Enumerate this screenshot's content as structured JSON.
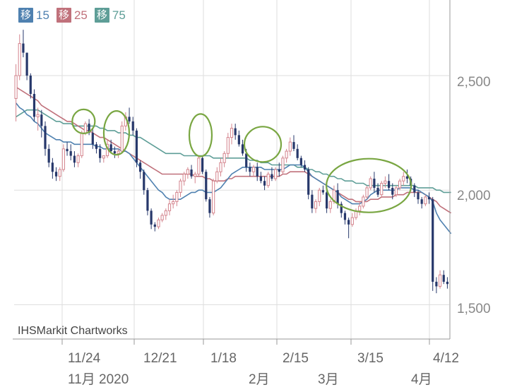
{
  "legend": [
    {
      "tag": "移",
      "value": "15",
      "color": "#4f81b0"
    },
    {
      "tag": "移",
      "value": "25",
      "color": "#c0717b"
    },
    {
      "tag": "移",
      "value": "75",
      "color": "#5e9e97"
    }
  ],
  "watermark": "IHSMarkit Chartworks",
  "chart_data": {
    "type": "candlestick",
    "y_axis": {
      "ticks": [
        "2,500",
        "2,000",
        "1,500"
      ],
      "tick_values": [
        2500,
        2000,
        1500
      ],
      "ylim": [
        1350,
        2830
      ],
      "side": "right"
    },
    "x_axis": {
      "date_ticks": [
        "11/24",
        "12/21",
        "1/18",
        "2/15",
        "3/15",
        "4/12"
      ],
      "period_labels": [
        "11月 2020",
        "2月",
        "3月",
        "4月"
      ]
    },
    "colors": {
      "up": "#d4848d",
      "down": "#27386b",
      "grid": "#dddddd",
      "highlight": "#79a642"
    },
    "candles": [
      [
        2400,
        2550,
        2300,
        2500
      ],
      [
        2500,
        2680,
        2480,
        2640
      ],
      [
        2640,
        2700,
        2580,
        2600
      ],
      [
        2600,
        2600,
        2480,
        2500
      ],
      [
        2500,
        2510,
        2400,
        2420
      ],
      [
        2420,
        2440,
        2300,
        2320
      ],
      [
        2320,
        2360,
        2260,
        2330
      ],
      [
        2330,
        2350,
        2230,
        2280
      ],
      [
        2280,
        2300,
        2150,
        2180
      ],
      [
        2180,
        2200,
        2100,
        2120
      ],
      [
        2120,
        2140,
        2050,
        2080
      ],
      [
        2080,
        2100,
        2040,
        2060
      ],
      [
        2060,
        2100,
        2040,
        2090
      ],
      [
        2090,
        2200,
        2080,
        2180
      ],
      [
        2180,
        2210,
        2150,
        2170
      ],
      [
        2170,
        2200,
        2130,
        2150
      ],
      [
        2150,
        2170,
        2100,
        2120
      ],
      [
        2120,
        2160,
        2100,
        2150
      ],
      [
        2150,
        2260,
        2140,
        2250
      ],
      [
        2250,
        2300,
        2240,
        2290
      ],
      [
        2290,
        2310,
        2240,
        2250
      ],
      [
        2250,
        2270,
        2180,
        2200
      ],
      [
        2200,
        2210,
        2160,
        2180
      ],
      [
        2180,
        2200,
        2120,
        2140
      ],
      [
        2140,
        2150,
        2120,
        2150
      ],
      [
        2150,
        2220,
        2140,
        2200
      ],
      [
        2200,
        2220,
        2160,
        2170
      ],
      [
        2170,
        2190,
        2140,
        2160
      ],
      [
        2160,
        2180,
        2140,
        2170
      ],
      [
        2170,
        2300,
        2160,
        2280
      ],
      [
        2280,
        2340,
        2260,
        2320
      ],
      [
        2320,
        2360,
        2290,
        2300
      ],
      [
        2300,
        2320,
        2240,
        2260
      ],
      [
        2260,
        2270,
        2100,
        2120
      ],
      [
        2120,
        2130,
        2050,
        2080
      ],
      [
        2080,
        2090,
        1980,
        2000
      ],
      [
        2000,
        2010,
        1890,
        1910
      ],
      [
        1910,
        1920,
        1830,
        1850
      ],
      [
        1850,
        1860,
        1820,
        1840
      ],
      [
        1840,
        1880,
        1830,
        1870
      ],
      [
        1870,
        1900,
        1860,
        1890
      ],
      [
        1890,
        1920,
        1870,
        1910
      ],
      [
        1910,
        1960,
        1890,
        1940
      ],
      [
        1940,
        1980,
        1920,
        1950
      ],
      [
        1950,
        2000,
        1930,
        1990
      ],
      [
        1990,
        2050,
        1970,
        2040
      ],
      [
        2040,
        2080,
        2020,
        2070
      ],
      [
        2070,
        2100,
        2050,
        2090
      ],
      [
        2090,
        2110,
        2050,
        2060
      ],
      [
        2060,
        2080,
        2030,
        2070
      ],
      [
        2070,
        2150,
        2060,
        2140
      ],
      [
        2140,
        2150,
        2070,
        2080
      ],
      [
        2080,
        2090,
        1950,
        1960
      ],
      [
        1960,
        1970,
        1880,
        1900
      ],
      [
        1900,
        2050,
        1890,
        2040
      ],
      [
        2040,
        2100,
        2030,
        2080
      ],
      [
        2080,
        2140,
        2060,
        2120
      ],
      [
        2120,
        2170,
        2100,
        2160
      ],
      [
        2160,
        2250,
        2140,
        2230
      ],
      [
        2230,
        2290,
        2200,
        2270
      ],
      [
        2270,
        2290,
        2220,
        2240
      ],
      [
        2240,
        2260,
        2190,
        2200
      ],
      [
        2200,
        2220,
        2150,
        2160
      ],
      [
        2160,
        2180,
        2080,
        2100
      ],
      [
        2100,
        2120,
        2060,
        2080
      ],
      [
        2080,
        2110,
        2060,
        2100
      ],
      [
        2100,
        2120,
        2040,
        2060
      ],
      [
        2060,
        2080,
        2030,
        2040
      ],
      [
        2040,
        2060,
        2000,
        2020
      ],
      [
        2020,
        2080,
        2010,
        2070
      ],
      [
        2070,
        2100,
        2040,
        2050
      ],
      [
        2050,
        2100,
        2040,
        2090
      ],
      [
        2090,
        2120,
        2060,
        2080
      ],
      [
        2080,
        2150,
        2070,
        2140
      ],
      [
        2140,
        2180,
        2120,
        2170
      ],
      [
        2170,
        2230,
        2150,
        2210
      ],
      [
        2210,
        2240,
        2170,
        2180
      ],
      [
        2180,
        2200,
        2130,
        2140
      ],
      [
        2140,
        2150,
        2100,
        2110
      ],
      [
        2110,
        2130,
        2080,
        2090
      ],
      [
        2090,
        2100,
        1960,
        1980
      ],
      [
        1980,
        2000,
        1900,
        1920
      ],
      [
        1920,
        1960,
        1900,
        1950
      ],
      [
        1950,
        2010,
        1930,
        2000
      ],
      [
        2000,
        2020,
        1980,
        1990
      ],
      [
        1990,
        2000,
        1900,
        1920
      ],
      [
        1920,
        1960,
        1900,
        1950
      ],
      [
        1950,
        2020,
        1940,
        2000
      ],
      [
        2000,
        2030,
        1920,
        1940
      ],
      [
        1940,
        1950,
        1880,
        1900
      ],
      [
        1900,
        1910,
        1850,
        1870
      ],
      [
        1870,
        1880,
        1790,
        1850
      ],
      [
        1850,
        1900,
        1840,
        1880
      ],
      [
        1880,
        1920,
        1870,
        1910
      ],
      [
        1910,
        1950,
        1890,
        1930
      ],
      [
        1930,
        1980,
        1920,
        1970
      ],
      [
        1970,
        2020,
        1960,
        2010
      ],
      [
        2010,
        2060,
        2000,
        2050
      ],
      [
        2050,
        2080,
        1990,
        2010
      ],
      [
        2010,
        2030,
        1970,
        1980
      ],
      [
        1980,
        2040,
        1970,
        2030
      ],
      [
        2030,
        2060,
        2010,
        2040
      ],
      [
        2040,
        2070,
        2000,
        2010
      ],
      [
        2010,
        2030,
        1960,
        1980
      ],
      [
        1980,
        2020,
        1970,
        2010
      ],
      [
        2010,
        2050,
        2000,
        2040
      ],
      [
        2040,
        2080,
        2020,
        2060
      ],
      [
        2060,
        2090,
        2030,
        2050
      ],
      [
        2050,
        2060,
        2010,
        2020
      ],
      [
        2020,
        2030,
        1970,
        1990
      ],
      [
        1990,
        2000,
        1940,
        1960
      ],
      [
        1960,
        1970,
        1920,
        1940
      ],
      [
        1940,
        1980,
        1930,
        1970
      ],
      [
        1970,
        1990,
        1940,
        1960
      ],
      [
        1960,
        1970,
        1560,
        1600
      ],
      [
        1600,
        1620,
        1550,
        1580
      ],
      [
        1580,
        1650,
        1570,
        1630
      ],
      [
        1630,
        1650,
        1590,
        1600
      ],
      [
        1600,
        1620,
        1570,
        1590
      ]
    ],
    "ma15": [
      2380,
      2360,
      2350,
      2330,
      2320,
      2300,
      2290,
      2270,
      2250,
      2240,
      2230,
      2220,
      2220,
      2210,
      2210,
      2210,
      2200,
      2200,
      2200,
      2200,
      2200,
      2200,
      2190,
      2190,
      2180,
      2180,
      2180,
      2180,
      2180,
      2170,
      2170,
      2160,
      2140,
      2120,
      2100,
      2080,
      2060,
      2040,
      2020,
      2000,
      1990,
      1970,
      1960,
      1960,
      1960,
      1960,
      1970,
      1980,
      1990,
      1990,
      2000,
      2000,
      1990,
      1990,
      1990,
      2000,
      2010,
      2030,
      2050,
      2070,
      2080,
      2090,
      2100,
      2100,
      2100,
      2100,
      2100,
      2100,
      2090,
      2090,
      2090,
      2090,
      2090,
      2090,
      2100,
      2110,
      2110,
      2110,
      2110,
      2100,
      2080,
      2060,
      2050,
      2040,
      2030,
      2020,
      2010,
      2000,
      1990,
      1970,
      1960,
      1950,
      1940,
      1940,
      1940,
      1950,
      1960,
      1980,
      1990,
      2000,
      2000,
      2000,
      2000,
      2000,
      2000,
      2010,
      2010,
      2010,
      2010,
      2000,
      2000,
      1990,
      1980,
      1970,
      1950,
      1900,
      1870,
      1850,
      1830,
      1810
    ],
    "ma25": [
      2450,
      2440,
      2430,
      2420,
      2410,
      2400,
      2390,
      2370,
      2360,
      2350,
      2340,
      2330,
      2320,
      2310,
      2300,
      2300,
      2290,
      2280,
      2270,
      2260,
      2260,
      2250,
      2240,
      2230,
      2230,
      2220,
      2210,
      2200,
      2190,
      2180,
      2170,
      2160,
      2150,
      2140,
      2130,
      2120,
      2110,
      2100,
      2090,
      2080,
      2070,
      2070,
      2070,
      2070,
      2070,
      2070,
      2070,
      2070,
      2070,
      2060,
      2060,
      2060,
      2050,
      2050,
      2040,
      2040,
      2040,
      2040,
      2050,
      2050,
      2060,
      2060,
      2060,
      2060,
      2060,
      2060,
      2060,
      2060,
      2060,
      2060,
      2060,
      2060,
      2060,
      2070,
      2070,
      2080,
      2080,
      2080,
      2080,
      2080,
      2070,
      2060,
      2050,
      2040,
      2030,
      2020,
      2010,
      2000,
      1990,
      1980,
      1970,
      1960,
      1960,
      1950,
      1950,
      1950,
      1950,
      1960,
      1960,
      1960,
      1970,
      1970,
      1970,
      1970,
      1980,
      1980,
      1980,
      1990,
      1990,
      1990,
      1990,
      1990,
      1980,
      1970,
      1960,
      1950,
      1930,
      1920,
      1910,
      1900
    ],
    "ma75": [
      2320,
      2330,
      2340,
      2350,
      2350,
      2350,
      2350,
      2340,
      2330,
      2320,
      2310,
      2300,
      2300,
      2290,
      2290,
      2290,
      2280,
      2280,
      2280,
      2280,
      2280,
      2280,
      2280,
      2270,
      2270,
      2260,
      2260,
      2260,
      2250,
      2250,
      2250,
      2240,
      2240,
      2230,
      2230,
      2220,
      2210,
      2200,
      2190,
      2180,
      2170,
      2160,
      2160,
      2160,
      2160,
      2160,
      2150,
      2150,
      2150,
      2150,
      2150,
      2150,
      2150,
      2150,
      2140,
      2140,
      2140,
      2140,
      2140,
      2140,
      2140,
      2140,
      2140,
      2140,
      2130,
      2130,
      2130,
      2120,
      2120,
      2120,
      2110,
      2110,
      2110,
      2110,
      2110,
      2110,
      2110,
      2100,
      2100,
      2100,
      2090,
      2090,
      2080,
      2080,
      2070,
      2070,
      2060,
      2060,
      2050,
      2050,
      2040,
      2040,
      2040,
      2030,
      2030,
      2030,
      2020,
      2020,
      2020,
      2020,
      2020,
      2020,
      2020,
      2020,
      2020,
      2020,
      2020,
      2020,
      2020,
      2020,
      2010,
      2010,
      2010,
      2010,
      2010,
      2000,
      2000,
      1990,
      1990,
      1990
    ]
  }
}
